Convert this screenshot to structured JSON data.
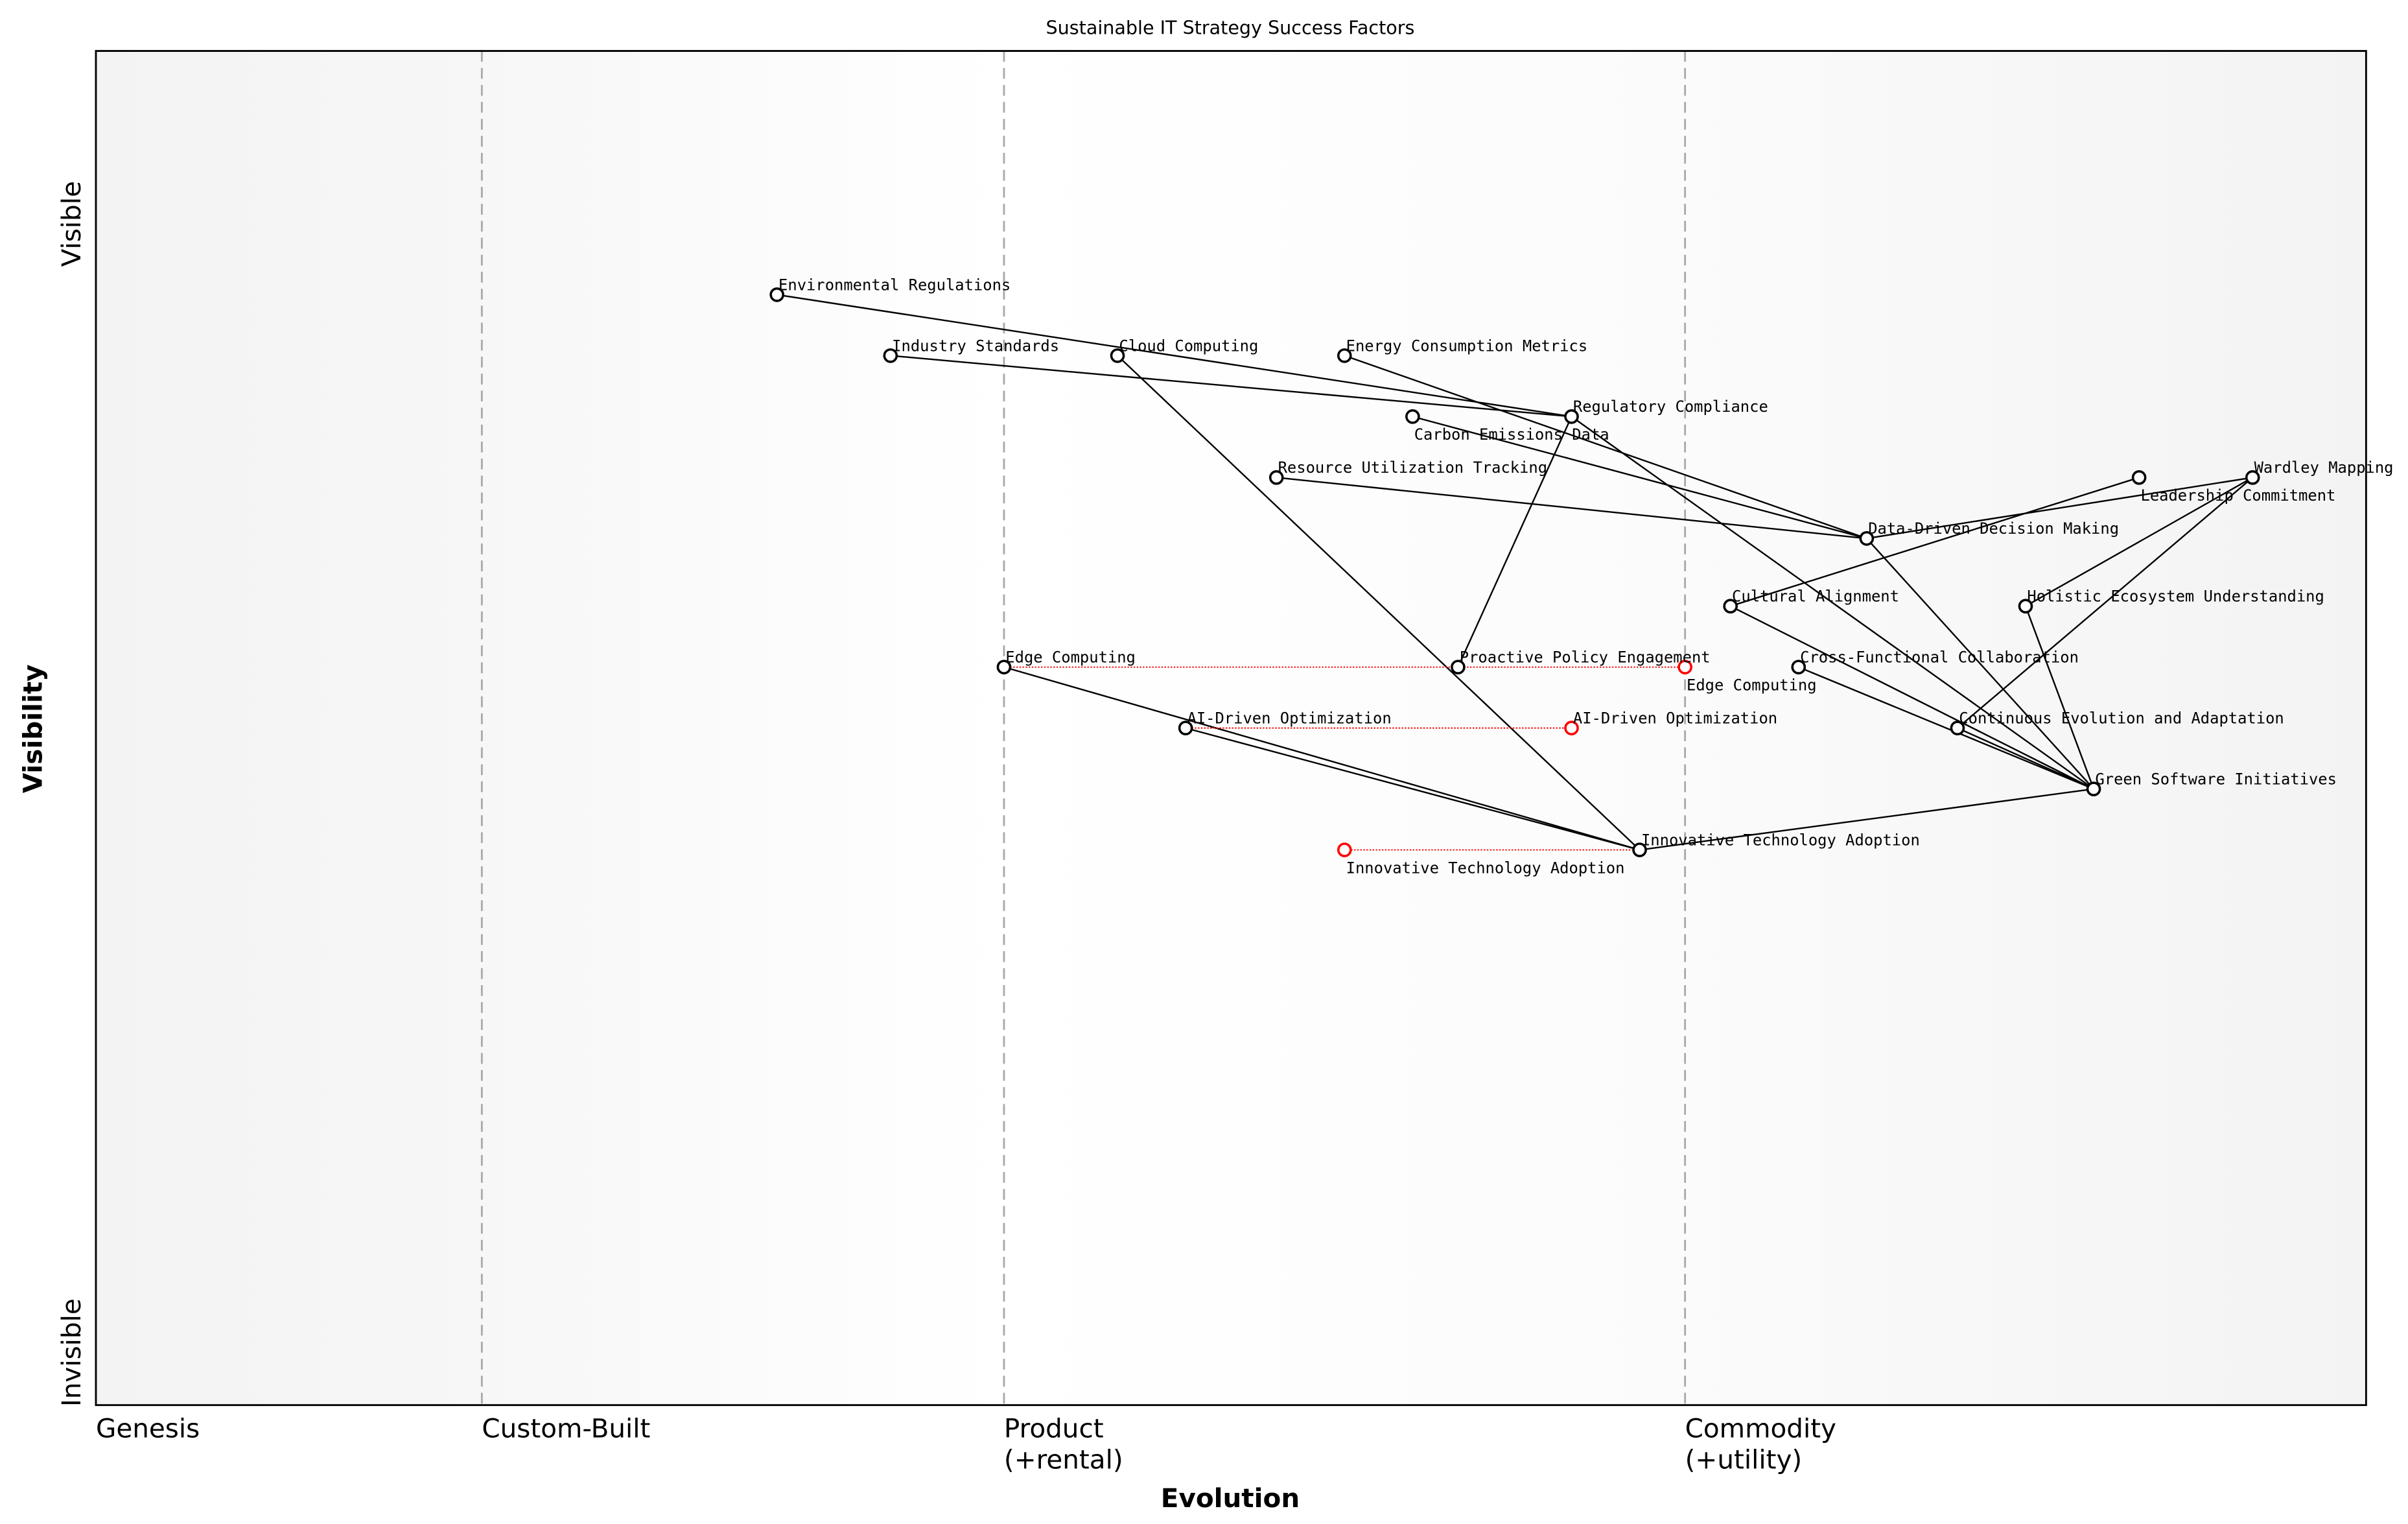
{
  "chart_data": {
    "type": "scatter",
    "title": "Sustainable IT Strategy Success Factors",
    "xlabel": "Evolution",
    "ylabel": "Visibility",
    "xlim": [
      0,
      1
    ],
    "ylim": [
      0,
      1
    ],
    "y_tick_labels": {
      "top": "Visible",
      "bottom": "Invisible"
    },
    "stages": [
      {
        "label": "Genesis",
        "x": 0
      },
      {
        "label": "Custom-Built",
        "x": 0.17
      },
      {
        "label": "Product\n(+rental)",
        "x": 0.4
      },
      {
        "label": "Commodity\n(+utility)",
        "x": 0.7
      }
    ],
    "colors": {
      "node": "#000000",
      "evolve": "#ff0000",
      "link": "#000000",
      "stage_line": "#aaaaaa"
    },
    "components": [
      {
        "name": "Environmental Regulations",
        "x": 0.3,
        "y": 0.82
      },
      {
        "name": "Industry Standards",
        "x": 0.35,
        "y": 0.775
      },
      {
        "name": "Cloud Computing",
        "x": 0.45,
        "y": 0.775
      },
      {
        "name": "Energy Consumption Metrics",
        "x": 0.55,
        "y": 0.775
      },
      {
        "name": "Carbon Emissions Data",
        "x": 0.58,
        "y": 0.73
      },
      {
        "name": "Regulatory Compliance",
        "x": 0.65,
        "y": 0.73
      },
      {
        "name": "Resource Utilization Tracking",
        "x": 0.52,
        "y": 0.685
      },
      {
        "name": "Leadership Commitment",
        "x": 0.9,
        "y": 0.685
      },
      {
        "name": "Wardley Mapping",
        "x": 0.95,
        "y": 0.685
      },
      {
        "name": "Data-Driven Decision Making",
        "x": 0.78,
        "y": 0.64
      },
      {
        "name": "Cultural Alignment",
        "x": 0.72,
        "y": 0.59
      },
      {
        "name": "Holistic Ecosystem Understanding",
        "x": 0.85,
        "y": 0.59
      },
      {
        "name": "Edge Computing",
        "x": 0.4,
        "y": 0.545
      },
      {
        "name": "Proactive Policy Engagement",
        "x": 0.6,
        "y": 0.545
      },
      {
        "name": "Cross-Functional Collaboration",
        "x": 0.75,
        "y": 0.545
      },
      {
        "name": "AI-Driven Optimization",
        "x": 0.48,
        "y": 0.5
      },
      {
        "name": "Continuous Evolution and Adaptation",
        "x": 0.82,
        "y": 0.5
      },
      {
        "name": "Green Software Initiatives",
        "x": 0.88,
        "y": 0.455
      },
      {
        "name": "Innovative Technology Adoption",
        "x": 0.68,
        "y": 0.41
      }
    ],
    "evolutions": [
      {
        "name": "Edge Computing",
        "from": 0.4,
        "to": 0.7
      },
      {
        "name": "AI-Driven Optimization",
        "from": 0.48,
        "to": 0.65
      },
      {
        "name": "Innovative Technology Adoption",
        "from": 0.68,
        "to": 0.55
      }
    ],
    "links": [
      [
        "Environmental Regulations",
        "Regulatory Compliance"
      ],
      [
        "Industry Standards",
        "Regulatory Compliance"
      ],
      [
        "Cloud Computing",
        "Innovative Technology Adoption"
      ],
      [
        "Energy Consumption Metrics",
        "Data-Driven Decision Making"
      ],
      [
        "Carbon Emissions Data",
        "Data-Driven Decision Making"
      ],
      [
        "Resource Utilization Tracking",
        "Data-Driven Decision Making"
      ],
      [
        "Regulatory Compliance",
        "Green Software Initiatives"
      ],
      [
        "Regulatory Compliance",
        "Proactive Policy Engagement"
      ],
      [
        "Data-Driven Decision Making",
        "Wardley Mapping"
      ],
      [
        "Data-Driven Decision Making",
        "Green Software Initiatives"
      ],
      [
        "Cultural Alignment",
        "Leadership Commitment"
      ],
      [
        "Cultural Alignment",
        "Green Software Initiatives"
      ],
      [
        "Wardley Mapping",
        "Holistic Ecosystem Understanding"
      ],
      [
        "Wardley Mapping",
        "Continuous Evolution and Adaptation"
      ],
      [
        "Holistic Ecosystem Understanding",
        "Green Software Initiatives"
      ],
      [
        "Cross-Functional Collaboration",
        "Green Software Initiatives"
      ],
      [
        "Continuous Evolution and Adaptation",
        "Green Software Initiatives"
      ],
      [
        "Green Software Initiatives",
        "Innovative Technology Adoption"
      ],
      [
        "Edge Computing",
        "Innovative Technology Adoption"
      ],
      [
        "AI-Driven Optimization",
        "Innovative Technology Adoption"
      ]
    ]
  }
}
